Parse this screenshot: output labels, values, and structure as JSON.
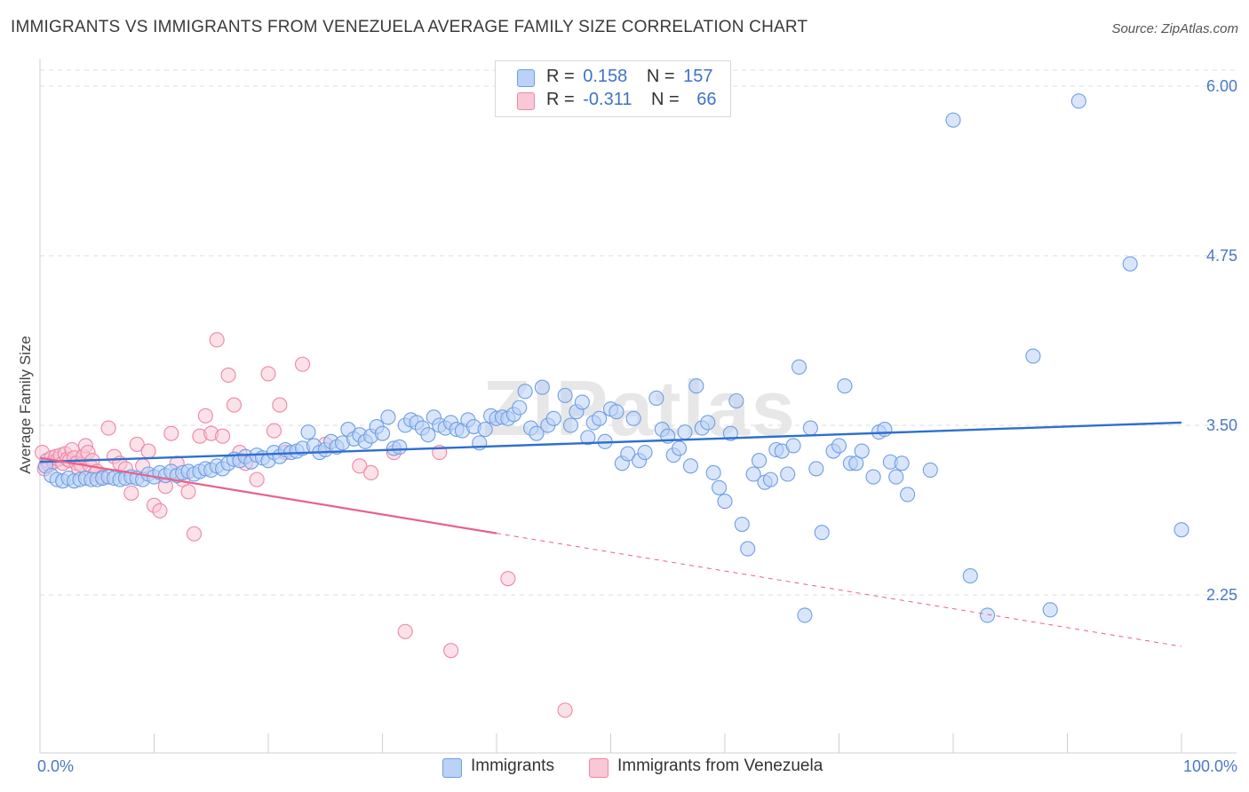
{
  "title": "IMMIGRANTS VS IMMIGRANTS FROM VENEZUELA AVERAGE FAMILY SIZE CORRELATION CHART",
  "source": "Source: ZipAtlas.com",
  "watermark": "ZIPatlas",
  "colors": {
    "blue": "#6e9ee6",
    "blue_fill": "#b9d2f5",
    "blue_line": "#2f6fcf",
    "pink": "#ee86a7",
    "pink_fill": "#f8c8d6",
    "pink_line": "#e8628b",
    "axis_text": "#4a78c6",
    "grid": "#dedede"
  },
  "stats": [
    {
      "r_label": "R =",
      "r_value": "0.158",
      "n_label": "N =",
      "n_value": "157",
      "color": "blue"
    },
    {
      "r_label": "R =",
      "r_value": "-0.311",
      "n_label": "N =",
      "n_value": "66",
      "color": "pink"
    }
  ],
  "legend": [
    {
      "label": "Immigrants",
      "color": "blue"
    },
    {
      "label": "Immigrants from Venezuela",
      "color": "pink"
    }
  ],
  "chart_data": {
    "type": "scatter",
    "title": "IMMIGRANTS VS IMMIGRANTS FROM VENEZUELA AVERAGE FAMILY SIZE CORRELATION CHART",
    "xlabel": "",
    "ylabel": "Average Family Size",
    "x_ticks": [
      "0.0%",
      "100.0%"
    ],
    "y_ticks": [
      "6.00",
      "4.75",
      "3.50",
      "2.25"
    ],
    "y_tick_values": [
      6.0,
      4.75,
      3.5,
      2.25
    ],
    "xlim": [
      0,
      100
    ],
    "ylim": [
      1.12,
      6.1
    ],
    "grid": true,
    "legend_position": "bottom",
    "series": [
      {
        "name": "Immigrants",
        "color": "blue",
        "trend": {
          "x": [
            0,
            100
          ],
          "y": [
            3.23,
            3.52
          ],
          "dashed_from": null
        },
        "points": [
          [
            0.5,
            3.2
          ],
          [
            1,
            3.13
          ],
          [
            1.5,
            3.1
          ],
          [
            2,
            3.09
          ],
          [
            2.5,
            3.11
          ],
          [
            3,
            3.09
          ],
          [
            3.5,
            3.1
          ],
          [
            4,
            3.11
          ],
          [
            4.5,
            3.1
          ],
          [
            5,
            3.1
          ],
          [
            5.5,
            3.11
          ],
          [
            6,
            3.12
          ],
          [
            6.5,
            3.11
          ],
          [
            7,
            3.1
          ],
          [
            7.5,
            3.11
          ],
          [
            8,
            3.12
          ],
          [
            8.5,
            3.11
          ],
          [
            9,
            3.1
          ],
          [
            9.5,
            3.14
          ],
          [
            10,
            3.12
          ],
          [
            10.5,
            3.15
          ],
          [
            11,
            3.13
          ],
          [
            11.5,
            3.16
          ],
          [
            12,
            3.13
          ],
          [
            12.5,
            3.15
          ],
          [
            13,
            3.16
          ],
          [
            13.5,
            3.14
          ],
          [
            14,
            3.16
          ],
          [
            14.5,
            3.18
          ],
          [
            15,
            3.17
          ],
          [
            15.5,
            3.2
          ],
          [
            16,
            3.18
          ],
          [
            16.5,
            3.22
          ],
          [
            17,
            3.25
          ],
          [
            17.5,
            3.24
          ],
          [
            18,
            3.27
          ],
          [
            18.5,
            3.23
          ],
          [
            19,
            3.28
          ],
          [
            19.5,
            3.26
          ],
          [
            20,
            3.24
          ],
          [
            20.5,
            3.3
          ],
          [
            21,
            3.27
          ],
          [
            21.5,
            3.32
          ],
          [
            22,
            3.3
          ],
          [
            22.5,
            3.31
          ],
          [
            23,
            3.33
          ],
          [
            23.5,
            3.45
          ],
          [
            24,
            3.35
          ],
          [
            24.5,
            3.3
          ],
          [
            25,
            3.32
          ],
          [
            25.5,
            3.38
          ],
          [
            26,
            3.34
          ],
          [
            26.5,
            3.37
          ],
          [
            27,
            3.47
          ],
          [
            27.5,
            3.4
          ],
          [
            28,
            3.43
          ],
          [
            28.5,
            3.38
          ],
          [
            29,
            3.42
          ],
          [
            29.5,
            3.49
          ],
          [
            30,
            3.44
          ],
          [
            30.5,
            3.56
          ],
          [
            31,
            3.33
          ],
          [
            31.5,
            3.34
          ],
          [
            32,
            3.5
          ],
          [
            32.5,
            3.54
          ],
          [
            33,
            3.52
          ],
          [
            33.5,
            3.48
          ],
          [
            34,
            3.43
          ],
          [
            34.5,
            3.56
          ],
          [
            35,
            3.5
          ],
          [
            35.5,
            3.48
          ],
          [
            36,
            3.52
          ],
          [
            36.5,
            3.47
          ],
          [
            37,
            3.46
          ],
          [
            37.5,
            3.54
          ],
          [
            38,
            3.49
          ],
          [
            38.5,
            3.37
          ],
          [
            39,
            3.47
          ],
          [
            39.5,
            3.57
          ],
          [
            40,
            3.55
          ],
          [
            40.5,
            3.56
          ],
          [
            41,
            3.55
          ],
          [
            41.5,
            3.58
          ],
          [
            42,
            3.63
          ],
          [
            42.5,
            3.75
          ],
          [
            43,
            3.48
          ],
          [
            43.5,
            3.44
          ],
          [
            44,
            3.78
          ],
          [
            44.5,
            3.5
          ],
          [
            45,
            3.55
          ],
          [
            46,
            3.72
          ],
          [
            46.5,
            3.5
          ],
          [
            47,
            3.6
          ],
          [
            47.5,
            3.67
          ],
          [
            48,
            3.41
          ],
          [
            48.5,
            3.52
          ],
          [
            49,
            3.55
          ],
          [
            49.5,
            3.38
          ],
          [
            50,
            3.62
          ],
          [
            50.5,
            3.6
          ],
          [
            51,
            3.22
          ],
          [
            51.5,
            3.29
          ],
          [
            52,
            3.55
          ],
          [
            52.5,
            3.24
          ],
          [
            53,
            3.3
          ],
          [
            54,
            3.7
          ],
          [
            54.5,
            3.47
          ],
          [
            55,
            3.42
          ],
          [
            55.5,
            3.28
          ],
          [
            56,
            3.33
          ],
          [
            56.5,
            3.45
          ],
          [
            57,
            3.2
          ],
          [
            57.5,
            3.79
          ],
          [
            58,
            3.48
          ],
          [
            58.5,
            3.52
          ],
          [
            59,
            3.15
          ],
          [
            59.5,
            3.04
          ],
          [
            60,
            2.94
          ],
          [
            60.5,
            3.44
          ],
          [
            61,
            3.68
          ],
          [
            61.5,
            2.77
          ],
          [
            62,
            2.59
          ],
          [
            62.5,
            3.14
          ],
          [
            63,
            3.24
          ],
          [
            63.5,
            3.08
          ],
          [
            64,
            3.1
          ],
          [
            64.5,
            3.32
          ],
          [
            65,
            3.31
          ],
          [
            65.5,
            3.14
          ],
          [
            66,
            3.35
          ],
          [
            66.5,
            3.93
          ],
          [
            67,
            2.1
          ],
          [
            67.5,
            3.48
          ],
          [
            68,
            3.18
          ],
          [
            68.5,
            2.71
          ],
          [
            69.5,
            3.31
          ],
          [
            70,
            3.35
          ],
          [
            70.5,
            3.79
          ],
          [
            71,
            3.22
          ],
          [
            71.5,
            3.22
          ],
          [
            72,
            3.31
          ],
          [
            73,
            3.12
          ],
          [
            73.5,
            3.45
          ],
          [
            74,
            3.47
          ],
          [
            74.5,
            3.23
          ],
          [
            75,
            3.12
          ],
          [
            75.5,
            3.22
          ],
          [
            76,
            2.99
          ],
          [
            78,
            3.17
          ],
          [
            80,
            5.75
          ],
          [
            81.5,
            2.39
          ],
          [
            83,
            2.1
          ],
          [
            87,
            4.01
          ],
          [
            88.5,
            2.14
          ],
          [
            91,
            5.89
          ],
          [
            95.5,
            4.69
          ],
          [
            100,
            2.73
          ]
        ]
      },
      {
        "name": "Immigrants from Venezuela",
        "color": "pink",
        "trend": {
          "x": [
            0,
            100
          ],
          "y": [
            3.26,
            1.87
          ],
          "solid_until_x": 40
        },
        "points": [
          [
            0.2,
            3.3
          ],
          [
            0.4,
            3.18
          ],
          [
            0.6,
            3.24
          ],
          [
            0.8,
            3.21
          ],
          [
            1,
            3.26
          ],
          [
            1.2,
            3.23
          ],
          [
            1.4,
            3.27
          ],
          [
            1.6,
            3.25
          ],
          [
            1.8,
            3.28
          ],
          [
            2,
            3.22
          ],
          [
            2.2,
            3.29
          ],
          [
            2.4,
            3.25
          ],
          [
            2.6,
            3.24
          ],
          [
            2.8,
            3.32
          ],
          [
            3,
            3.26
          ],
          [
            3.2,
            3.22
          ],
          [
            3.4,
            3.18
          ],
          [
            3.6,
            3.21
          ],
          [
            3.8,
            3.27
          ],
          [
            4,
            3.35
          ],
          [
            4.2,
            3.3
          ],
          [
            4.4,
            3.2
          ],
          [
            4.6,
            3.24
          ],
          [
            4.8,
            3.14
          ],
          [
            5,
            3.16
          ],
          [
            5.5,
            3.12
          ],
          [
            6,
            3.48
          ],
          [
            6.5,
            3.27
          ],
          [
            7,
            3.22
          ],
          [
            7.5,
            3.18
          ],
          [
            8,
            3.0
          ],
          [
            8.5,
            3.36
          ],
          [
            9,
            3.2
          ],
          [
            9.5,
            3.31
          ],
          [
            10,
            2.91
          ],
          [
            10.5,
            2.87
          ],
          [
            11,
            3.05
          ],
          [
            11.5,
            3.44
          ],
          [
            12,
            3.22
          ],
          [
            12.5,
            3.1
          ],
          [
            13,
            3.01
          ],
          [
            13.5,
            2.7
          ],
          [
            14,
            3.42
          ],
          [
            14.5,
            3.57
          ],
          [
            15,
            3.44
          ],
          [
            15.5,
            4.13
          ],
          [
            16,
            3.42
          ],
          [
            16.5,
            3.87
          ],
          [
            17,
            3.65
          ],
          [
            17.5,
            3.3
          ],
          [
            18,
            3.22
          ],
          [
            19,
            3.1
          ],
          [
            20,
            3.88
          ],
          [
            20.5,
            3.46
          ],
          [
            21,
            3.65
          ],
          [
            21.5,
            3.3
          ],
          [
            23,
            3.95
          ],
          [
            25,
            3.36
          ],
          [
            28,
            3.2
          ],
          [
            29,
            3.15
          ],
          [
            31,
            3.3
          ],
          [
            32,
            1.98
          ],
          [
            35,
            3.3
          ],
          [
            36,
            1.84
          ],
          [
            41,
            2.37
          ],
          [
            46,
            1.4
          ]
        ]
      }
    ]
  }
}
